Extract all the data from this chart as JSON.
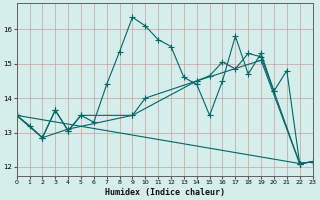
{
  "xlabel": "Humidex (Indice chaleur)",
  "bg_color": "#d5edeb",
  "grid_color": "#c8dbd8",
  "line_color": "#006666",
  "xlim": [
    0,
    23
  ],
  "ylim": [
    11.75,
    16.75
  ],
  "yticks": [
    12,
    13,
    14,
    15,
    16
  ],
  "xticks": [
    0,
    1,
    2,
    3,
    4,
    5,
    6,
    7,
    8,
    9,
    10,
    11,
    12,
    13,
    14,
    15,
    16,
    17,
    18,
    19,
    20,
    21,
    22,
    23
  ],
  "line1_x": [
    0,
    1,
    2,
    3,
    4,
    5,
    6,
    7,
    8,
    9,
    10,
    11,
    12,
    13,
    14,
    15,
    16,
    17,
    18,
    19,
    20,
    21,
    22,
    23
  ],
  "line1_y": [
    13.5,
    13.2,
    12.85,
    13.65,
    13.05,
    13.5,
    13.3,
    14.4,
    15.35,
    16.35,
    16.1,
    15.7,
    15.5,
    14.6,
    14.4,
    13.5,
    14.5,
    15.8,
    14.7,
    15.3,
    14.2,
    14.8,
    12.1,
    12.15
  ],
  "line2_x": [
    0,
    2,
    3,
    4,
    5,
    9,
    10,
    14,
    15,
    16,
    17,
    18,
    19,
    20,
    22,
    23
  ],
  "line2_y": [
    13.5,
    12.85,
    13.65,
    13.05,
    13.5,
    13.5,
    14.0,
    14.5,
    14.65,
    15.05,
    14.85,
    15.3,
    15.2,
    14.2,
    12.1,
    12.15
  ],
  "line3_x": [
    0,
    2,
    4,
    9,
    14,
    19,
    22,
    23
  ],
  "line3_y": [
    13.5,
    12.85,
    13.1,
    13.5,
    14.5,
    15.1,
    12.1,
    12.15
  ],
  "line4_x": [
    0,
    22,
    23
  ],
  "line4_y": [
    13.5,
    12.1,
    12.15
  ]
}
